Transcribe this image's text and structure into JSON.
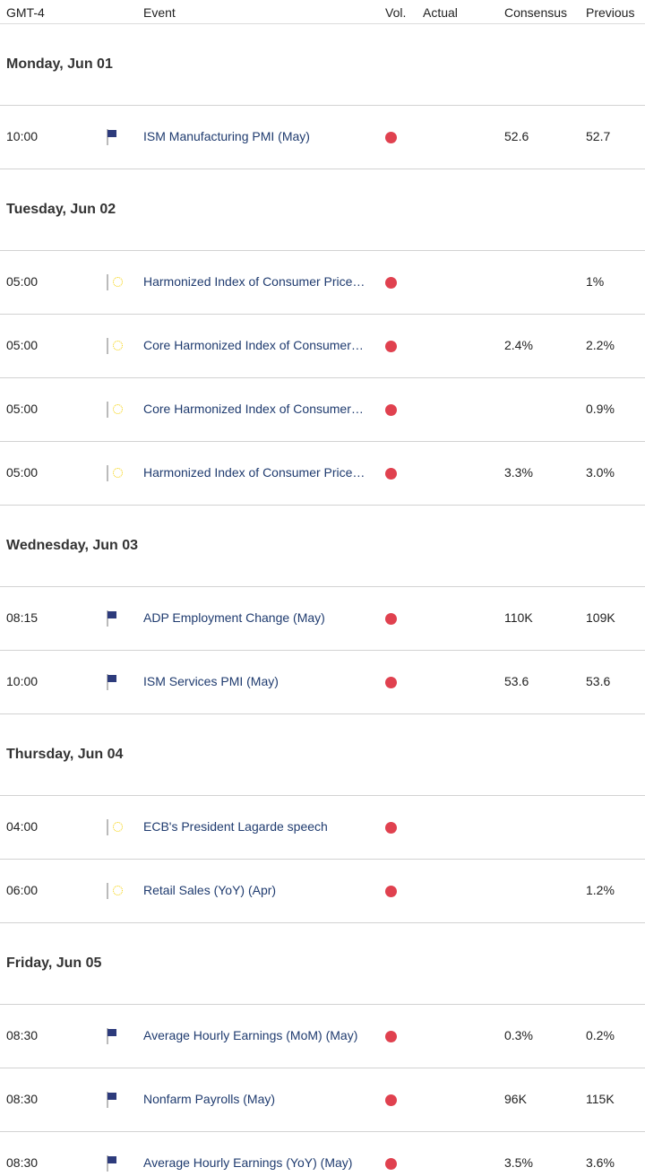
{
  "header": {
    "timezone": "GMT-4",
    "event": "Event",
    "vol": "Vol.",
    "actual": "Actual",
    "consensus": "Consensus",
    "previous": "Previous"
  },
  "colors": {
    "volatility_high": "#e0414f",
    "event_link": "#1f3b6f"
  },
  "days": [
    {
      "label": "Monday, Jun 01",
      "events": [
        {
          "time": "10:00",
          "flag": "us-flag-icon",
          "name": "ISM Manufacturing PMI (May)",
          "volatility": "high",
          "actual": "",
          "consensus": "52.6",
          "previous": "52.7"
        }
      ]
    },
    {
      "label": "Tuesday, Jun 02",
      "events": [
        {
          "time": "05:00",
          "flag": "eu-flag-icon",
          "name": "Harmonized Index of Consumer Price…",
          "volatility": "high",
          "actual": "",
          "consensus": "",
          "previous": "1%"
        },
        {
          "time": "05:00",
          "flag": "eu-flag-icon",
          "name": "Core Harmonized Index of Consumer…",
          "volatility": "high",
          "actual": "",
          "consensus": "2.4%",
          "previous": "2.2%"
        },
        {
          "time": "05:00",
          "flag": "eu-flag-icon",
          "name": "Core Harmonized Index of Consumer…",
          "volatility": "high",
          "actual": "",
          "consensus": "",
          "previous": "0.9%"
        },
        {
          "time": "05:00",
          "flag": "eu-flag-icon",
          "name": "Harmonized Index of Consumer Price…",
          "volatility": "high",
          "actual": "",
          "consensus": "3.3%",
          "previous": "3.0%"
        }
      ]
    },
    {
      "label": "Wednesday, Jun 03",
      "events": [
        {
          "time": "08:15",
          "flag": "us-flag-icon",
          "name": "ADP Employment Change (May)",
          "volatility": "high",
          "actual": "",
          "consensus": "110K",
          "previous": "109K"
        },
        {
          "time": "10:00",
          "flag": "us-flag-icon",
          "name": "ISM Services PMI (May)",
          "volatility": "high",
          "actual": "",
          "consensus": "53.6",
          "previous": "53.6"
        }
      ]
    },
    {
      "label": "Thursday, Jun 04",
      "events": [
        {
          "time": "04:00",
          "flag": "eu-flag-icon",
          "name": "ECB's President Lagarde speech",
          "volatility": "high",
          "actual": "",
          "consensus": "",
          "previous": ""
        },
        {
          "time": "06:00",
          "flag": "eu-flag-icon",
          "name": "Retail Sales (YoY) (Apr)",
          "volatility": "high",
          "actual": "",
          "consensus": "",
          "previous": "1.2%"
        }
      ]
    },
    {
      "label": "Friday, Jun 05",
      "events": [
        {
          "time": "08:30",
          "flag": "us-flag-icon",
          "name": "Average Hourly Earnings (MoM) (May)",
          "volatility": "high",
          "actual": "",
          "consensus": "0.3%",
          "previous": "0.2%"
        },
        {
          "time": "08:30",
          "flag": "us-flag-icon",
          "name": "Nonfarm Payrolls (May)",
          "volatility": "high",
          "actual": "",
          "consensus": "96K",
          "previous": "115K"
        },
        {
          "time": "08:30",
          "flag": "us-flag-icon",
          "name": "Average Hourly Earnings (YoY) (May)",
          "volatility": "high",
          "actual": "",
          "consensus": "3.5%",
          "previous": "3.6%"
        }
      ]
    }
  ]
}
